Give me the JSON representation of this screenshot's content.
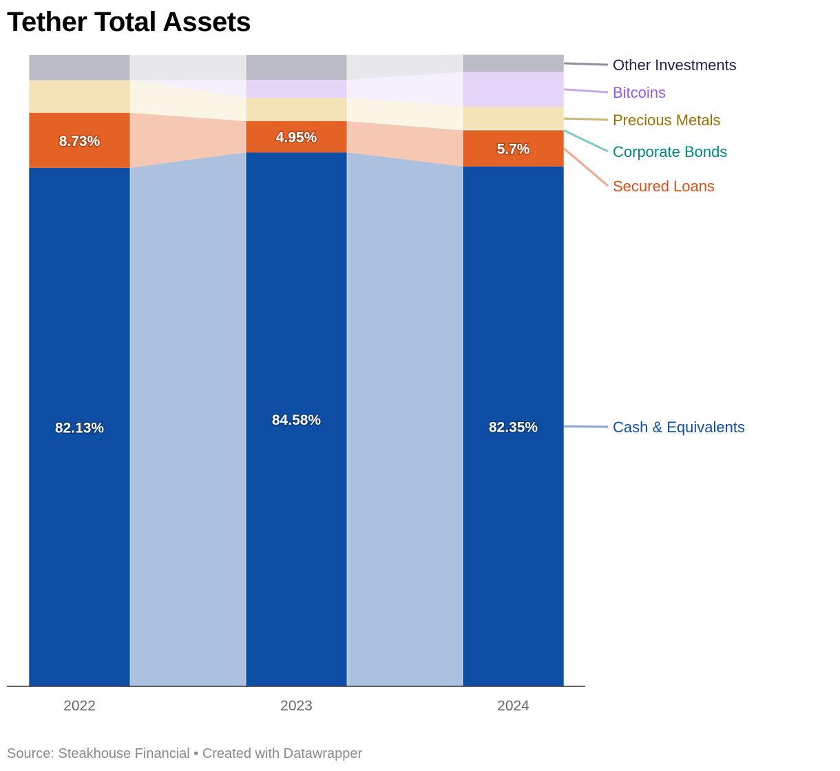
{
  "chart_data": {
    "type": "bar",
    "stacked": true,
    "normalized_percent": true,
    "title": "Tether Total Assets",
    "categories": [
      "2022",
      "2023",
      "2024"
    ],
    "series": [
      {
        "name": "Cash & Equivalents",
        "values": [
          82.13,
          84.58,
          82.35
        ],
        "color": "#0e4ea4",
        "label_color": "#0e4ea4",
        "line_color": "#8aa6d4",
        "show_labels": true
      },
      {
        "name": "Secured Loans",
        "values": [
          8.73,
          4.95,
          5.7
        ],
        "color": "#e46226",
        "label_color": "#d8521a",
        "line_color": "#eca88a",
        "show_labels": true
      },
      {
        "name": "Corporate Bonds",
        "values": [
          0,
          0,
          0.05
        ],
        "color": "#3aaea6",
        "label_color": "#00887f",
        "line_color": "#7fc9c4",
        "show_labels": false
      },
      {
        "name": "Precious Metals",
        "values": [
          5.14,
          3.71,
          3.71
        ],
        "color": "#f4e3b7",
        "label_color": "#9a6e00",
        "line_color": "#cdb57a",
        "show_labels": false
      },
      {
        "name": "Bitcoins",
        "values": [
          0,
          2.84,
          5.51
        ],
        "color": "#e4d4f8",
        "label_color": "#9a5bd8",
        "line_color": "#c5a8ec",
        "show_labels": false
      },
      {
        "name": "Other Investments",
        "values": [
          4.0,
          3.92,
          2.73
        ],
        "color": "#bbbbc8",
        "label_color": "#23234a",
        "line_color": "#8e8ea2",
        "show_labels": false
      }
    ],
    "data_labels": {
      "2022": [
        "82.13%",
        "8.73%"
      ],
      "2023": [
        "84.58%",
        "4.95%"
      ],
      "2024": [
        "82.35%",
        "5.7%"
      ]
    },
    "ylim": [
      0,
      100
    ],
    "grid": false,
    "legend": "right (direct labels)",
    "source": "Source: Steakhouse Financial • Created with Datawrapper"
  }
}
